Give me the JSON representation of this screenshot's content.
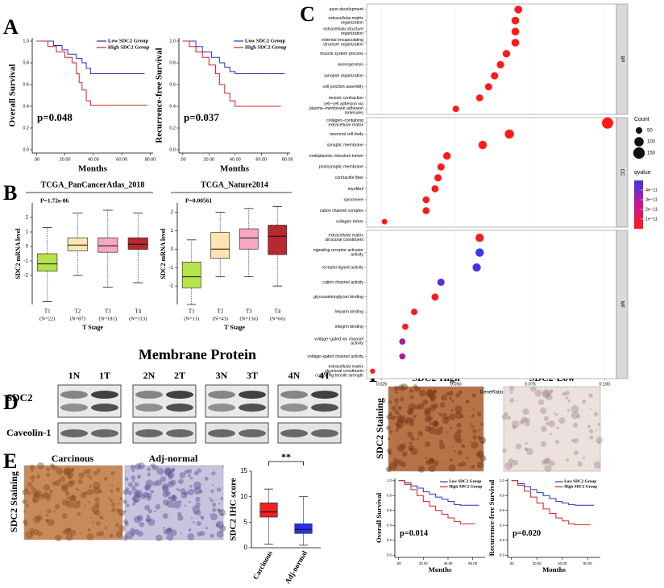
{
  "figure": {
    "panels": [
      "A",
      "B",
      "C",
      "D",
      "E",
      "F"
    ],
    "blot": {
      "title": "Membrane Protein",
      "lanes": [
        "1N",
        "1T",
        "2N",
        "2T",
        "3N",
        "3T",
        "4N",
        "4T"
      ],
      "rows": [
        "SDC2",
        "Caveolin-1"
      ]
    },
    "ihc_e": {
      "columns": [
        "Carcinous",
        "Adj-normal"
      ],
      "row_label": "SDC2 Staining"
    },
    "ihc_f": {
      "columns": [
        "SDC2-High",
        "SDC2-Low"
      ],
      "row_label": "SDC2 Staining"
    }
  },
  "chart_data": [
    {
      "type": "line",
      "step": true,
      "ylabel": "Overall Survival",
      "xlabel": "Months",
      "annotation": "p=0.048",
      "legend": "upper right",
      "xlim": [
        -3,
        82
      ],
      "xticks": [
        {
          "value": 0,
          "label": ".00"
        },
        {
          "value": 20,
          "label": "20.00"
        },
        {
          "value": 40,
          "label": "40.00"
        },
        {
          "value": 60,
          "label": "60.00"
        },
        {
          "value": 80,
          "label": "80.00"
        }
      ],
      "ylim": [
        -0.03,
        1.03
      ],
      "yticks": [
        {
          "value": 0,
          "label": "0.0"
        },
        {
          "value": 0.2,
          "label": "0.2"
        },
        {
          "value": 0.4,
          "label": "0.4"
        },
        {
          "value": 0.6,
          "label": "0.6"
        },
        {
          "value": 0.8,
          "label": "0.8"
        },
        {
          "value": 1,
          "label": "1.0"
        }
      ],
      "series": [
        {
          "name": "Low SDC2 Group",
          "color": "#2c2cc8",
          "x": [
            0,
            12,
            18,
            22,
            28,
            32,
            35,
            38,
            76
          ],
          "values": [
            1,
            0.96,
            0.92,
            0.88,
            0.84,
            0.8,
            0.75,
            0.7,
            0.7
          ]
        },
        {
          "name": "High SDC2 Group",
          "color": "#d42020",
          "x": [
            0,
            8,
            14,
            20,
            25,
            28,
            30,
            32,
            35,
            38,
            78
          ],
          "values": [
            1,
            0.95,
            0.9,
            0.85,
            0.8,
            0.7,
            0.62,
            0.55,
            0.45,
            0.41,
            0.41
          ]
        }
      ]
    },
    {
      "type": "line",
      "step": true,
      "ylabel": "Recurrence-free Survival",
      "xlabel": "Months",
      "annotation": "p=0.037",
      "legend": "upper right",
      "xlim": [
        -3,
        82
      ],
      "xticks": [
        {
          "value": 0,
          "label": ".00"
        },
        {
          "value": 20,
          "label": "20.00"
        },
        {
          "value": 40,
          "label": "40.00"
        },
        {
          "value": 60,
          "label": "60.00"
        },
        {
          "value": 80,
          "label": "80.00"
        }
      ],
      "ylim": [
        -0.03,
        1.03
      ],
      "yticks": [
        {
          "value": 0,
          "label": "0.0"
        },
        {
          "value": 0.2,
          "label": "0.2"
        },
        {
          "value": 0.4,
          "label": "0.4"
        },
        {
          "value": 0.6,
          "label": "0.6"
        },
        {
          "value": 0.8,
          "label": "0.8"
        },
        {
          "value": 1,
          "label": "1.0"
        }
      ],
      "series": [
        {
          "name": "Low SDC2 Group",
          "color": "#2c2cc8",
          "x": [
            0,
            10,
            15,
            22,
            28,
            32,
            36,
            40,
            78
          ],
          "values": [
            1,
            0.95,
            0.9,
            0.85,
            0.8,
            0.76,
            0.72,
            0.7,
            0.7
          ]
        },
        {
          "name": "High SDC2 Group",
          "color": "#d42020",
          "x": [
            0,
            5,
            10,
            15,
            20,
            25,
            28,
            32,
            36,
            40,
            75
          ],
          "values": [
            1,
            0.95,
            0.9,
            0.85,
            0.78,
            0.7,
            0.6,
            0.52,
            0.45,
            0.4,
            0.4
          ]
        }
      ]
    },
    {
      "type": "box",
      "title": "TCGA_PanCancerAtlas_2018",
      "annotation": "P=1.72e-06",
      "ylabel": "SDC2 mRNA level",
      "xlabel": "T Stage",
      "categories": [
        "T1",
        "T2",
        "T3",
        "T4"
      ],
      "category_notes": [
        "(N=22)",
        "(N=87)",
        "(N=181)",
        "(N=113)"
      ],
      "colors": [
        "#b5e34a",
        "#fde5b0",
        "#f7a6c4",
        "#b8282e"
      ],
      "ylim": [
        -4,
        3
      ],
      "yticks": [
        -2,
        -1,
        0,
        1,
        2
      ],
      "min": [
        -3.8,
        -2,
        -2.8,
        -2.5
      ],
      "q1": [
        -1.7,
        -0.3,
        -0.4,
        -0.2
      ],
      "median": [
        -1.2,
        0.1,
        0.05,
        0.15
      ],
      "q3": [
        -0.5,
        0.6,
        0.6,
        0.6
      ],
      "max": [
        1.3,
        2.3,
        2.5,
        2.3
      ]
    },
    {
      "type": "box",
      "title": "TCGA_Nature2014",
      "annotation": "P=0.00561",
      "ylabel": "SDC2 mRNA level",
      "xlabel": "T Stage",
      "categories": [
        "T1",
        "T2",
        "T3",
        "T4"
      ],
      "category_notes": [
        "(N=11)",
        "(N=43)",
        "(N=136)",
        "(N=66)"
      ],
      "colors": [
        "#b5e34a",
        "#fde5b0",
        "#f7a6c4",
        "#b8282e"
      ],
      "ylim": [
        -3,
        2.5
      ],
      "yticks": [
        -2,
        -1,
        0,
        1,
        2
      ],
      "min": [
        -3,
        -1.5,
        -1.5,
        -2
      ],
      "q1": [
        -2.1,
        -0.5,
        0,
        -0.3
      ],
      "median": [
        -1.5,
        0,
        0.6,
        0.7
      ],
      "q3": [
        -0.7,
        0.9,
        1.1,
        1.3
      ],
      "max": [
        0.5,
        2,
        2.2,
        2.3
      ]
    },
    {
      "type": "dot",
      "xlabel": "GeneRatio",
      "xlim": [
        0.02,
        0.104
      ],
      "xticks": [
        {
          "value": 0.025,
          "label": "0.025"
        },
        {
          "value": 0.05,
          "label": "0.050"
        },
        {
          "value": 0.075,
          "label": "0.075"
        },
        {
          "value": 0.1,
          "label": "0.100"
        }
      ],
      "size_legend": {
        "title": "Count",
        "values": [
          50,
          100,
          150
        ]
      },
      "color_legend": {
        "title": "qvalue",
        "lim": [
          0,
          5e-11
        ],
        "colors": [
          "#ff1a1a",
          "#c8188f",
          "#3d35e6"
        ],
        "ticks": [
          {
            "value": 1e-11,
            "label": "1e−11"
          },
          {
            "value": 2e-11,
            "label": "2e−11"
          },
          {
            "value": 3e-11,
            "label": "3e−11"
          },
          {
            "value": 4e-11,
            "label": "4e−11"
          }
        ]
      },
      "facets": [
        {
          "name": "BP",
          "terms": [
            "axon development",
            "extracellular matrix\norganization",
            "extracellular structure\norganization",
            "external encapsulating\nstructure organization",
            "muscle system process",
            "axonogenesis",
            "synapse organization",
            "cell junction assembly",
            "muscle contraction",
            "cell−cell adhesion via\nplasma−membrane adhesion\nmolecules"
          ],
          "values": [
            0.071,
            0.07,
            0.07,
            0.07,
            0.067,
            0.065,
            0.063,
            0.061,
            0.058,
            0.05
          ],
          "counts": [
            70,
            69,
            69,
            69,
            66,
            64,
            62,
            60,
            57,
            49
          ],
          "qvalues": [
            1e-13,
            1e-13,
            1e-13,
            1e-13,
            1e-13,
            1e-13,
            1e-13,
            1e-13,
            1e-13,
            1e-12
          ]
        },
        {
          "name": "CC",
          "terms": [
            "collagen−containing\nextracellular matrix",
            "neuronal cell body",
            "synaptic membrane",
            "endoplasmic reticulum lumen",
            "postsynaptic membrane",
            "contractile fiber",
            "myofibril",
            "sarcomere",
            "cation channel complex",
            "collagen trimer"
          ],
          "values": [
            0.101,
            0.068,
            0.059,
            0.047,
            0.045,
            0.044,
            0.043,
            0.04,
            0.04,
            0.026
          ],
          "counts": [
            145,
            95,
            80,
            65,
            60,
            60,
            58,
            55,
            55,
            35
          ],
          "qvalues": [
            1e-13,
            1e-13,
            1e-13,
            1e-13,
            1e-13,
            1e-13,
            1e-13,
            1e-13,
            1e-13,
            1e-13
          ]
        },
        {
          "name": "MF",
          "terms": [
            "extracellular matrix\nstructural constituent",
            "signaling receptor activator\nactivity",
            "receptor ligand activity",
            "cation channel activity",
            "glycosaminoglycan binding",
            "heparin binding",
            "integrin binding",
            "voltage−gated ion channel\nactivity",
            "voltage−gated channel activity",
            "extracellular matrix\nstructural constituent\nconferring tensile strength"
          ],
          "values": [
            0.058,
            0.058,
            0.057,
            0.045,
            0.043,
            0.036,
            0.033,
            0.032,
            0.032,
            0.022
          ],
          "counts": [
            80,
            80,
            78,
            60,
            58,
            48,
            45,
            44,
            44,
            30
          ],
          "qvalues": [
            1e-12,
            5e-11,
            5e-11,
            4.5e-11,
            1e-12,
            1e-12,
            1e-12,
            3e-11,
            3e-11,
            1e-12
          ]
        }
      ]
    },
    {
      "type": "box",
      "annotation": "**",
      "ylabel": "SDC2 IHC score",
      "categories": [
        "Carcinous",
        "Adj-normal"
      ],
      "colors": [
        "#ee2222",
        "#2d2dee"
      ],
      "ylim": [
        0,
        15
      ],
      "yticks": [
        0,
        5,
        10,
        15
      ],
      "min": [
        0.7,
        0.5
      ],
      "q1": [
        6,
        2.8
      ],
      "median": [
        7,
        3.6
      ],
      "q3": [
        8.8,
        4.7
      ],
      "max": [
        11.5,
        10
      ]
    },
    {
      "type": "line",
      "step": true,
      "ylabel": "Overall Survival",
      "xlabel": "Months",
      "annotation": "p=0.014",
      "legend": "upper right",
      "xlim": [
        -3,
        70
      ],
      "xticks": [
        {
          "value": 0,
          "label": ".00"
        },
        {
          "value": 20,
          "label": "20.00"
        },
        {
          "value": 40,
          "label": "40.00"
        },
        {
          "value": 60,
          "label": "60.00"
        }
      ],
      "ylim": [
        -0.03,
        1.03
      ],
      "yticks": [
        {
          "value": 0,
          "label": "0.0"
        },
        {
          "value": 0.2,
          "label": "0.2"
        },
        {
          "value": 0.4,
          "label": "0.4"
        },
        {
          "value": 0.6,
          "label": "0.6"
        },
        {
          "value": 0.8,
          "label": "0.8"
        },
        {
          "value": 1,
          "label": "1.0"
        }
      ],
      "series": [
        {
          "name": "Low SDC2 Group",
          "color": "#2c2cc8",
          "x": [
            0,
            5,
            10,
            15,
            20,
            25,
            30,
            35,
            40,
            45,
            50,
            65
          ],
          "values": [
            1,
            0.97,
            0.93,
            0.9,
            0.85,
            0.82,
            0.78,
            0.75,
            0.72,
            0.68,
            0.67,
            0.67
          ]
        },
        {
          "name": "High SDC2 Group",
          "color": "#d42020",
          "x": [
            0,
            5,
            10,
            15,
            20,
            25,
            30,
            35,
            40,
            45,
            50,
            62
          ],
          "values": [
            1,
            0.95,
            0.88,
            0.8,
            0.72,
            0.66,
            0.6,
            0.55,
            0.5,
            0.45,
            0.42,
            0.42
          ]
        }
      ]
    },
    {
      "type": "line",
      "step": true,
      "ylabel": "Recurrence-free Survival",
      "xlabel": "Months",
      "annotation": "p=0.020",
      "legend": "upper right",
      "xlim": [
        -3,
        70
      ],
      "xticks": [
        {
          "value": 0,
          "label": ".00"
        },
        {
          "value": 20,
          "label": "20.00"
        },
        {
          "value": 40,
          "label": "40.00"
        },
        {
          "value": 60,
          "label": "60.00"
        }
      ],
      "ylim": [
        -0.03,
        1.03
      ],
      "yticks": [
        {
          "value": 0,
          "label": "0.0"
        },
        {
          "value": 0.2,
          "label": "0.2"
        },
        {
          "value": 0.4,
          "label": "0.4"
        },
        {
          "value": 0.6,
          "label": "0.6"
        },
        {
          "value": 0.8,
          "label": "0.8"
        },
        {
          "value": 1,
          "label": "1.0"
        }
      ],
      "series": [
        {
          "name": "Low SDC2 Group",
          "color": "#2c2cc8",
          "x": [
            0,
            5,
            10,
            15,
            20,
            25,
            30,
            35,
            40,
            45,
            50,
            65
          ],
          "values": [
            1,
            0.96,
            0.92,
            0.88,
            0.84,
            0.8,
            0.76,
            0.72,
            0.7,
            0.68,
            0.67,
            0.67
          ]
        },
        {
          "name": "High SDC2 Group",
          "color": "#d42020",
          "x": [
            0,
            5,
            10,
            15,
            20,
            25,
            30,
            35,
            40,
            45,
            50,
            62
          ],
          "values": [
            1,
            0.94,
            0.86,
            0.78,
            0.7,
            0.62,
            0.56,
            0.5,
            0.46,
            0.42,
            0.41,
            0.41
          ]
        }
      ]
    }
  ]
}
